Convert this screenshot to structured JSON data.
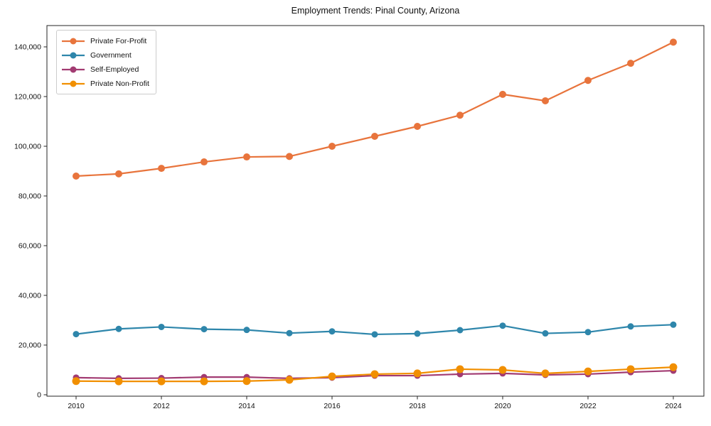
{
  "title": "Employment Trends: Pinal County, Arizona",
  "chart_data": {
    "type": "line",
    "title": "Employment Trends: Pinal County, Arizona",
    "xlabel": "",
    "ylabel": "",
    "x": [
      2010,
      2011,
      2012,
      2013,
      2014,
      2015,
      2016,
      2017,
      2018,
      2019,
      2020,
      2021,
      2022,
      2023,
      2024
    ],
    "xtick_labels": [
      "2010",
      "2012",
      "2014",
      "2016",
      "2018",
      "2020",
      "2022",
      "2024"
    ],
    "xticks": [
      2010,
      2012,
      2014,
      2016,
      2018,
      2020,
      2022,
      2024
    ],
    "yticks": [
      0,
      20000,
      40000,
      60000,
      80000,
      100000,
      120000,
      140000
    ],
    "ytick_labels": [
      "0",
      "20,000",
      "40,000",
      "60,000",
      "80,000",
      "100,000",
      "120,000",
      "140,000"
    ],
    "ylim": [
      -2300,
      148600
    ],
    "xlim": [
      2009.3,
      2024.7
    ],
    "grid": false,
    "legend_position": "upper left",
    "series": [
      {
        "name": "Private For-Profit",
        "color": "#E8743C",
        "marker": "circle",
        "marker_radius": 5,
        "values": [
          88000,
          88900,
          91100,
          93700,
          95700,
          95900,
          100000,
          104000,
          108000,
          112500,
          120900,
          118300,
          126500,
          133400,
          141900
        ]
      },
      {
        "name": "Government",
        "color": "#2E86AB",
        "marker": "circle",
        "marker_radius": 4.5,
        "values": [
          24400,
          26500,
          27300,
          26400,
          26100,
          24800,
          25500,
          24300,
          24600,
          26000,
          27800,
          24700,
          25200,
          27500,
          28200
        ]
      },
      {
        "name": "Self-Employed",
        "color": "#A23B72",
        "marker": "circle",
        "marker_radius": 4.5,
        "values": [
          6900,
          6600,
          6700,
          7100,
          7100,
          6600,
          6900,
          7700,
          7700,
          8300,
          8600,
          8000,
          8300,
          9100,
          9700
        ]
      },
      {
        "name": "Private Non-Profit",
        "color": "#F18F01",
        "marker": "circle",
        "marker_radius": 5.5,
        "values": [
          5500,
          5400,
          5400,
          5400,
          5500,
          6000,
          7400,
          8300,
          8600,
          10300,
          10000,
          8600,
          9400,
          10300,
          11100
        ]
      }
    ],
    "axis_color": "#262626"
  }
}
